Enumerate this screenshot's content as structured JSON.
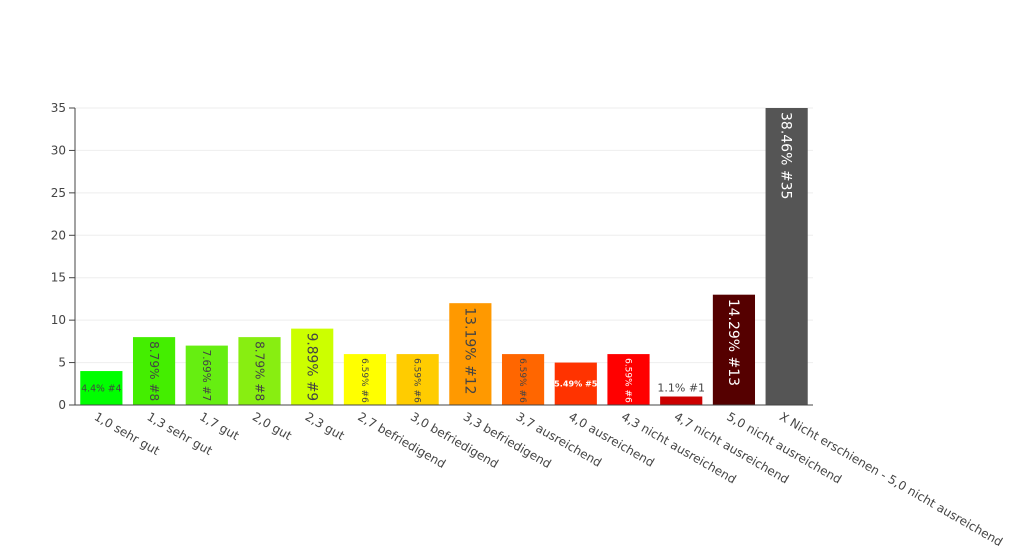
{
  "chart_data": {
    "type": "bar",
    "title": "",
    "xlabel": "",
    "ylabel": "",
    "ylim": [
      0,
      35
    ],
    "yticks": [
      0,
      5,
      10,
      15,
      20,
      25,
      30,
      35
    ],
    "grid": true,
    "categories": [
      "1,0 sehr gut",
      "1,3 sehr gut",
      "1,7 gut",
      "2,0 gut",
      "2,3 gut",
      "2,7 befriedigend",
      "3,0 befriedigend",
      "3,3 befriedigend",
      "3,7 ausreichend",
      "4,0 ausreichend",
      "4,3 nicht ausreichend",
      "4,7 nicht ausreichend",
      "5,0 nicht ausreichend",
      "X Nicht erschienen - 5,0 nicht ausreichend"
    ],
    "values": [
      4,
      8,
      7,
      8,
      9,
      6,
      6,
      12,
      6,
      5,
      6,
      1,
      13,
      35
    ],
    "data_labels": [
      "4.4% #4",
      "8.79% #8",
      "7.69% #7",
      "8.79% #8",
      "9.89% #9",
      "6.59% #6",
      "6.59% #6",
      "13.19% #12",
      "6.59% #6",
      "5.49% #5",
      "6.59% #6",
      "1.1% #1",
      "14.29% #13",
      "38.46% #35"
    ],
    "colors": [
      "#00ff00",
      "#44ee00",
      "#66ee11",
      "#88ee11",
      "#ccff00",
      "#ffff00",
      "#ffcc00",
      "#ff9900",
      "#ff6600",
      "#ff3300",
      "#ff0000",
      "#cc0000",
      "#550000",
      "#555555"
    ],
    "label_colors": [
      "#444444",
      "#444444",
      "#444444",
      "#444444",
      "#444444",
      "#444444",
      "#444444",
      "#444444",
      "#444444",
      "#ffffff",
      "#ffffff",
      "#444444",
      "#ffffff",
      "#ffffff"
    ]
  }
}
